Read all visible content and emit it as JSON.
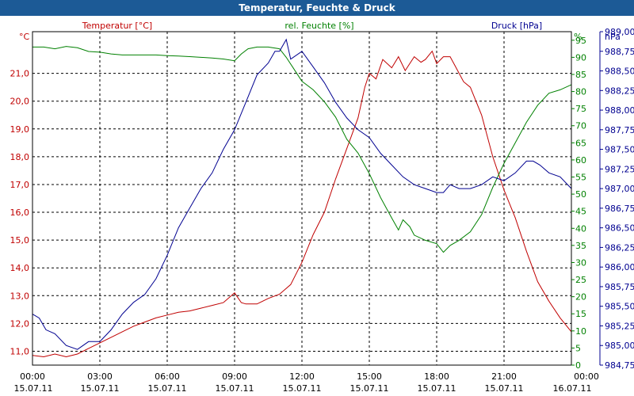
{
  "window": {
    "title": "Temperatur, Feuchte & Druck"
  },
  "chart_data": {
    "type": "line",
    "title": "Temperatur, Feuchte & Druck",
    "x_axis": {
      "range_hours": [
        0,
        24
      ],
      "ticks": [
        0,
        3,
        6,
        9,
        12,
        15,
        18,
        21,
        24
      ],
      "tick_times": [
        "00:00",
        "03:00",
        "06:00",
        "09:00",
        "12:00",
        "15:00",
        "18:00",
        "21:00",
        "00:00"
      ],
      "tick_dates": [
        "15.07.11",
        "15.07.11",
        "15.07.11",
        "15.07.11",
        "15.07.11",
        "15.07.11",
        "15.07.11",
        "15.07.11",
        "16.07.11"
      ]
    },
    "axes": {
      "temp": {
        "label": "Temperatur [°C]",
        "unit": "°C",
        "ylim": [
          10.5,
          22.5
        ],
        "ticks": [
          11,
          12,
          13,
          14,
          15,
          16,
          17,
          18,
          19,
          20,
          21
        ],
        "tick_labels": [
          "11,0",
          "12,0",
          "13,0",
          "14,0",
          "15,0",
          "16,0",
          "17,0",
          "18,0",
          "19,0",
          "20,0",
          "21,0"
        ],
        "color": "#c00000"
      },
      "hum": {
        "label": "rel. Feuchte [%]",
        "unit": "%",
        "ylim": [
          0,
          97.5
        ],
        "ticks": [
          0,
          5,
          10,
          15,
          20,
          25,
          30,
          35,
          40,
          45,
          50,
          55,
          60,
          65,
          70,
          75,
          80,
          85,
          90,
          95
        ],
        "tick_labels": [
          "0",
          "5",
          "10",
          "15",
          "20",
          "25",
          "30",
          "35",
          "40",
          "45",
          "50",
          "55",
          "60",
          "65",
          "70",
          "75",
          "80",
          "85",
          "90",
          "95"
        ],
        "color": "#008000"
      },
      "press": {
        "label": "Druck [hPa]",
        "unit": "hPa",
        "ylim": [
          984.75,
          989.0
        ],
        "ticks": [
          984.75,
          985.0,
          985.25,
          985.5,
          985.75,
          986.0,
          986.25,
          986.5,
          986.75,
          987.0,
          987.25,
          987.5,
          987.75,
          988.0,
          988.25,
          988.5,
          988.75,
          989.0
        ],
        "tick_labels": [
          "984,75",
          "985,00",
          "985,25",
          "985,50",
          "985,75",
          "986,00",
          "986,25",
          "986,50",
          "986,75",
          "987,00",
          "987,25",
          "987,50",
          "987,75",
          "988,00",
          "988,25",
          "988,50",
          "988,75",
          "989,00"
        ],
        "color": "#000090"
      }
    },
    "series": [
      {
        "name": "Temperatur [°C]",
        "axis": "temp",
        "color": "#c00000",
        "points": [
          [
            0,
            10.85
          ],
          [
            0.5,
            10.8
          ],
          [
            1,
            10.9
          ],
          [
            1.5,
            10.8
          ],
          [
            2,
            10.9
          ],
          [
            2.5,
            11.1
          ],
          [
            3,
            11.3
          ],
          [
            3.5,
            11.5
          ],
          [
            4,
            11.7
          ],
          [
            4.5,
            11.9
          ],
          [
            5,
            12.05
          ],
          [
            5.5,
            12.2
          ],
          [
            6,
            12.3
          ],
          [
            6.5,
            12.4
          ],
          [
            7,
            12.45
          ],
          [
            7.5,
            12.55
          ],
          [
            8,
            12.65
          ],
          [
            8.5,
            12.75
          ],
          [
            9,
            13.1
          ],
          [
            9.3,
            12.75
          ],
          [
            9.5,
            12.7
          ],
          [
            10,
            12.7
          ],
          [
            10.5,
            12.9
          ],
          [
            11,
            13.05
          ],
          [
            11.5,
            13.4
          ],
          [
            12,
            14.2
          ],
          [
            12.5,
            15.2
          ],
          [
            13,
            16.0
          ],
          [
            13.5,
            17.2
          ],
          [
            14,
            18.3
          ],
          [
            14.5,
            19.4
          ],
          [
            14.8,
            20.5
          ],
          [
            15,
            21.0
          ],
          [
            15.3,
            20.8
          ],
          [
            15.6,
            21.5
          ],
          [
            16,
            21.2
          ],
          [
            16.3,
            21.6
          ],
          [
            16.6,
            21.1
          ],
          [
            17,
            21.6
          ],
          [
            17.3,
            21.4
          ],
          [
            17.5,
            21.5
          ],
          [
            17.8,
            21.8
          ],
          [
            18,
            21.35
          ],
          [
            18.3,
            21.6
          ],
          [
            18.6,
            21.6
          ],
          [
            18.8,
            21.3
          ],
          [
            19.2,
            20.7
          ],
          [
            19.5,
            20.5
          ],
          [
            20,
            19.5
          ],
          [
            20.5,
            18.0
          ],
          [
            21,
            16.8
          ],
          [
            21.5,
            15.8
          ],
          [
            22,
            14.6
          ],
          [
            22.5,
            13.5
          ],
          [
            23,
            12.8
          ],
          [
            23.5,
            12.2
          ],
          [
            24,
            11.7
          ]
        ]
      },
      {
        "name": "rel. Feuchte [%]",
        "axis": "hum",
        "color": "#008000",
        "points": [
          [
            0,
            93
          ],
          [
            0.5,
            93
          ],
          [
            1,
            92.5
          ],
          [
            1.5,
            93.2
          ],
          [
            2,
            92.8
          ],
          [
            2.5,
            91.7
          ],
          [
            3,
            91.5
          ],
          [
            3.5,
            91
          ],
          [
            4,
            90.7
          ],
          [
            4.5,
            90.7
          ],
          [
            5,
            90.7
          ],
          [
            5.5,
            90.7
          ],
          [
            6,
            90.5
          ],
          [
            6.5,
            90.4
          ],
          [
            7,
            90.2
          ],
          [
            7.5,
            90
          ],
          [
            8,
            89.8
          ],
          [
            8.5,
            89.5
          ],
          [
            9,
            89.0
          ],
          [
            9.3,
            91.0
          ],
          [
            9.6,
            92.5
          ],
          [
            10,
            93
          ],
          [
            10.5,
            93
          ],
          [
            11,
            92.5
          ],
          [
            11.3,
            90
          ],
          [
            11.6,
            87
          ],
          [
            12,
            83
          ],
          [
            12.5,
            80.5
          ],
          [
            13,
            77
          ],
          [
            13.5,
            72.5
          ],
          [
            14,
            66
          ],
          [
            14.5,
            62
          ],
          [
            15,
            56
          ],
          [
            15.5,
            49
          ],
          [
            16,
            43
          ],
          [
            16.3,
            39.5
          ],
          [
            16.5,
            42.5
          ],
          [
            16.8,
            40.5
          ],
          [
            17,
            38
          ],
          [
            17.5,
            36.5
          ],
          [
            18,
            35.5
          ],
          [
            18.3,
            33
          ],
          [
            18.6,
            35
          ],
          [
            19,
            36.5
          ],
          [
            19.5,
            39
          ],
          [
            20,
            44
          ],
          [
            20.5,
            52
          ],
          [
            21,
            59
          ],
          [
            21.5,
            65
          ],
          [
            22,
            71
          ],
          [
            22.5,
            76
          ],
          [
            23,
            79.5
          ],
          [
            23.5,
            80.5
          ],
          [
            24,
            82
          ]
        ]
      },
      {
        "name": "Druck [hPa]",
        "axis": "press",
        "color": "#000090",
        "points": [
          [
            0,
            985.4
          ],
          [
            0.3,
            985.35
          ],
          [
            0.6,
            985.2
          ],
          [
            1,
            985.15
          ],
          [
            1.5,
            985.0
          ],
          [
            2,
            984.95
          ],
          [
            2.5,
            985.05
          ],
          [
            3,
            985.05
          ],
          [
            3.5,
            985.2
          ],
          [
            4,
            985.4
          ],
          [
            4.5,
            985.55
          ],
          [
            5,
            985.65
          ],
          [
            5.5,
            985.85
          ],
          [
            6,
            986.15
          ],
          [
            6.5,
            986.5
          ],
          [
            7,
            986.75
          ],
          [
            7.5,
            987.0
          ],
          [
            8,
            987.2
          ],
          [
            8.5,
            987.5
          ],
          [
            9,
            987.75
          ],
          [
            9.5,
            988.1
          ],
          [
            10,
            988.45
          ],
          [
            10.5,
            988.6
          ],
          [
            10.8,
            988.75
          ],
          [
            11,
            988.75
          ],
          [
            11.3,
            988.9
          ],
          [
            11.5,
            988.65
          ],
          [
            12,
            988.75
          ],
          [
            12.5,
            988.55
          ],
          [
            13,
            988.35
          ],
          [
            13.5,
            988.1
          ],
          [
            14,
            987.9
          ],
          [
            14.5,
            987.75
          ],
          [
            15,
            987.65
          ],
          [
            15.5,
            987.45
          ],
          [
            16,
            987.3
          ],
          [
            16.5,
            987.15
          ],
          [
            17,
            987.05
          ],
          [
            17.5,
            987.0
          ],
          [
            18,
            986.95
          ],
          [
            18.3,
            986.95
          ],
          [
            18.6,
            987.05
          ],
          [
            19,
            987.0
          ],
          [
            19.5,
            987.0
          ],
          [
            20,
            987.05
          ],
          [
            20.5,
            987.15
          ],
          [
            21,
            987.1
          ],
          [
            21.5,
            987.2
          ],
          [
            22,
            987.35
          ],
          [
            22.3,
            987.35
          ],
          [
            22.6,
            987.3
          ],
          [
            23,
            987.2
          ],
          [
            23.5,
            987.15
          ],
          [
            24,
            987.0
          ]
        ]
      }
    ]
  }
}
